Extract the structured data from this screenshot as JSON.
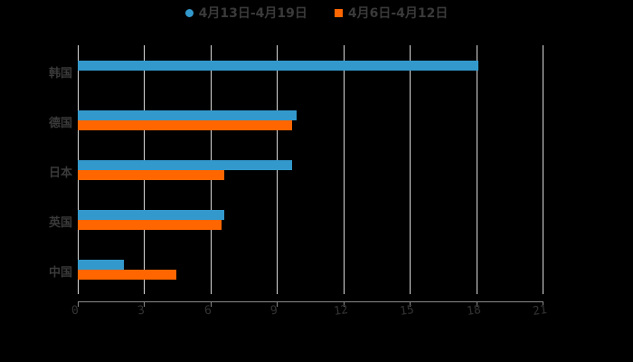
{
  "chart_data": {
    "type": "bar",
    "orientation": "horizontal",
    "title": "",
    "xlabel": "",
    "ylabel": "",
    "categories": [
      "韩国",
      "德国",
      "日本",
      "英国",
      "中国"
    ],
    "series": [
      {
        "name": "4月13日-4月19日",
        "color": "#3399cc",
        "values": [
          18.1,
          9.9,
          9.7,
          6.6,
          2.1
        ]
      },
      {
        "name": "4月6日-4月12日",
        "color": "#ff6600",
        "values": [
          null,
          9.7,
          6.6,
          6.5,
          4.45
        ]
      }
    ],
    "xlim": [
      0,
      21
    ],
    "xticks": [
      "0",
      "3",
      "6",
      "9",
      "12",
      "15",
      "18",
      "21"
    ],
    "grid": true,
    "legend_position": "top"
  },
  "legend": {
    "items": [
      {
        "label": "4月13日-4月19日",
        "color": "#3399cc",
        "marker": "circle"
      },
      {
        "label": "4月6日-4月12日",
        "color": "#ff6600",
        "marker": "square"
      }
    ]
  }
}
